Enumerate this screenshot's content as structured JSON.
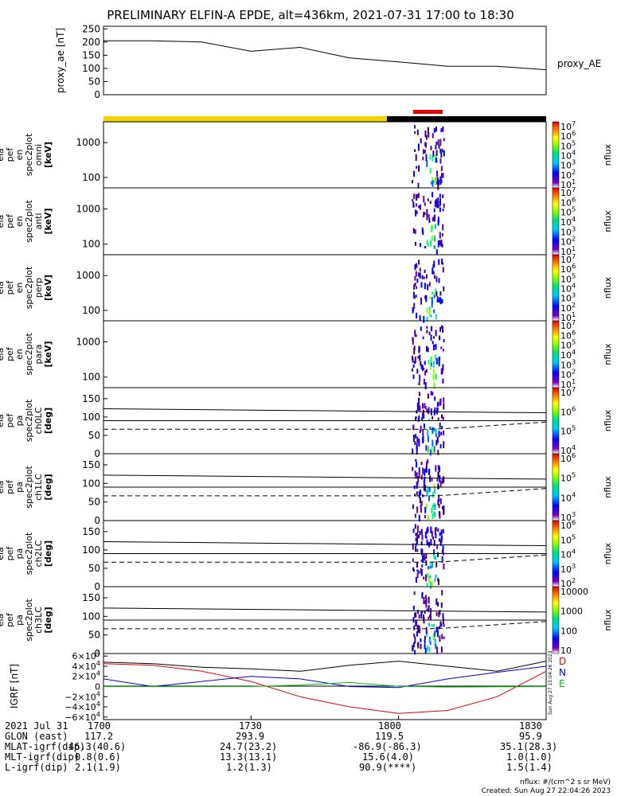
{
  "title": "PRELIMINARY ELFIN-A EPDE, alt=436km, 2021-07-31 17:00 to 18:30",
  "time_labels": [
    "1700",
    "1730",
    "1800",
    "1830"
  ],
  "proxy_ae": {
    "ylabel": "proxy_ae [nT]",
    "right_label": "proxy_AE",
    "ticks": [
      "250",
      "200",
      "150",
      "100",
      "50",
      "0"
    ]
  },
  "status_bar": {
    "segments": [
      {
        "color": "#f2d300",
        "label": "yellow"
      },
      {
        "color": "#000000",
        "label": "black"
      }
    ],
    "marker_color": "#e00000"
  },
  "panels": [
    {
      "id": "ela_pef_en_spec2plot_omni",
      "ylabel": [
        "ela",
        "pef",
        "en",
        "spec2plot",
        "omni",
        "[keV]"
      ],
      "ticks": [
        "1000",
        "100"
      ],
      "cbar_ticks": [
        "10^7",
        "10^6",
        "10^5",
        "10^4",
        "10^3",
        "10^2",
        "10^1"
      ],
      "cbar_label": "nflux"
    },
    {
      "id": "ela_pef_en_spec2plot_anti",
      "ylabel": [
        "ela",
        "pef",
        "en",
        "spec2plot",
        "anti",
        "[keV]"
      ],
      "ticks": [
        "1000",
        "100"
      ],
      "cbar_ticks": [
        "10^7",
        "10^6",
        "10^5",
        "10^4",
        "10^3",
        "10^2",
        "10^1"
      ],
      "cbar_label": "nflux"
    },
    {
      "id": "ela_pef_en_spec2plot_perp",
      "ylabel": [
        "ela",
        "pef",
        "en",
        "spec2plot",
        "perp",
        "[keV]"
      ],
      "ticks": [
        "1000",
        "100"
      ],
      "cbar_ticks": [
        "10^7",
        "10^6",
        "10^5",
        "10^4",
        "10^3",
        "10^2",
        "10^1"
      ],
      "cbar_label": "nflux"
    },
    {
      "id": "ela_pef_en_spec2plot_para",
      "ylabel": [
        "ela",
        "pef",
        "en",
        "spec2plot",
        "para",
        "[keV]"
      ],
      "ticks": [
        "1000",
        "100"
      ],
      "cbar_ticks": [
        "10^7",
        "10^6",
        "10^5",
        "10^4",
        "10^3",
        "10^2",
        "10^1"
      ],
      "cbar_label": "nflux"
    },
    {
      "id": "ela_pef_pa_spec2plot_ch0LC",
      "ylabel": [
        "ela",
        "pef",
        "pa",
        "spec2plot",
        "ch0LC",
        "[deg]"
      ],
      "ticks": [
        "150",
        "100",
        "50",
        "0"
      ],
      "cbar_ticks": [
        "10^7",
        "10^6",
        "10^5",
        "10^4"
      ],
      "cbar_label": "nflux"
    },
    {
      "id": "ela_pef_pa_spec2plot_ch1LC",
      "ylabel": [
        "ela",
        "pef",
        "pa",
        "spec2plot",
        "ch1LC",
        "[deg]"
      ],
      "ticks": [
        "150",
        "100",
        "50",
        "0"
      ],
      "cbar_ticks": [
        "10^6",
        "10^5",
        "10^4",
        "10^3"
      ],
      "cbar_label": "nflux"
    },
    {
      "id": "ela_pef_pa_spec2plot_ch2LC",
      "ylabel": [
        "ela",
        "pef",
        "pa",
        "spec2plot",
        "ch2LC",
        "[deg]"
      ],
      "ticks": [
        "150",
        "100",
        "50",
        "0"
      ],
      "cbar_ticks": [
        "10^6",
        "10^5",
        "10^4",
        "10^3",
        "10^2"
      ],
      "cbar_label": "nflux"
    },
    {
      "id": "ela_pef_pa_spec2plot_ch3LC",
      "ylabel": [
        "ela",
        "pef",
        "pa",
        "spec2plot",
        "ch3LC",
        "[deg]"
      ],
      "ticks": [
        "150",
        "100",
        "50",
        "0"
      ],
      "cbar_ticks": [
        "10000",
        "1000",
        "100",
        "10"
      ],
      "cbar_label": "nflux"
    }
  ],
  "igrf": {
    "ylabel": "IGRF [nT]",
    "ticks": [
      "6×10^4",
      "4×10^4",
      "2×10^4",
      "0",
      "−2×10^4",
      "−4×10^4",
      "−6×10^4"
    ],
    "legend": [
      {
        "label": "D",
        "color": "#e00000"
      },
      {
        "label": "N",
        "color": "#0000e0"
      },
      {
        "label": "E",
        "color": "#00c000"
      }
    ],
    "side_text": "Sun Aug 27 15:04:26 2023"
  },
  "chart_data": {
    "type": "line",
    "title": "PRELIMINARY ELFIN-A EPDE, alt=436km, 2021-07-31 17:00 to 18:30",
    "x": [
      "17:00",
      "17:10",
      "17:20",
      "17:30",
      "17:40",
      "17:50",
      "18:00",
      "18:10",
      "18:20",
      "18:30"
    ],
    "series": [
      {
        "name": "proxy_AE",
        "values": [
          205,
          205,
          200,
          165,
          180,
          140,
          125,
          108,
          108,
          95
        ]
      }
    ],
    "ylim": [
      0,
      260
    ],
    "igrf_series": [
      {
        "name": "D",
        "color": "#e00000",
        "values": [
          45000,
          42000,
          30000,
          10000,
          -20000,
          -40000,
          -53000,
          -47000,
          -20000,
          30000
        ]
      },
      {
        "name": "N",
        "color": "#0000e0",
        "values": [
          15000,
          0,
          10000,
          20000,
          15000,
          0,
          -2000,
          15000,
          28000,
          40000
        ]
      },
      {
        "name": "E",
        "color": "#00c000",
        "values": [
          0,
          0,
          0,
          0,
          3000,
          8000,
          500,
          -1000,
          -500,
          0
        ]
      },
      {
        "name": "total",
        "color": "#000000",
        "values": [
          48000,
          45000,
          38000,
          35000,
          30000,
          42000,
          50000,
          40000,
          30000,
          50000
        ]
      }
    ],
    "igrf_ylim": [
      -65000,
      65000
    ]
  },
  "ephemeris": {
    "rows": [
      {
        "label": "2021 Jul 31",
        "values": [
          "1700",
          "1730",
          "1800",
          "1830"
        ]
      },
      {
        "label": "GLON (east)",
        "values": [
          "117.2",
          "293.9",
          "119.5",
          "95.9"
        ]
      },
      {
        "label": "MLAT-igrf(dip)",
        "values": [
          "46.3(40.6)",
          "24.7(23.2)",
          "-86.9(-86.3)",
          "35.1(28.3)"
        ]
      },
      {
        "label": "MLT-igrf(dip)",
        "values": [
          "0.8(0.6)",
          "13.3(13.1)",
          "15.6(4.0)",
          "1.0(1.0)"
        ]
      },
      {
        "label": "L-igrf(dip)",
        "values": [
          "2.1(1.9)",
          "1.2(1.3)",
          "90.9(****)",
          "1.5(1.4)"
        ]
      }
    ]
  },
  "footer": {
    "units": "nflux: #/(cm^2 s sr MeV)",
    "created": "Created: Sun Aug 27 22:04:26 2023"
  }
}
